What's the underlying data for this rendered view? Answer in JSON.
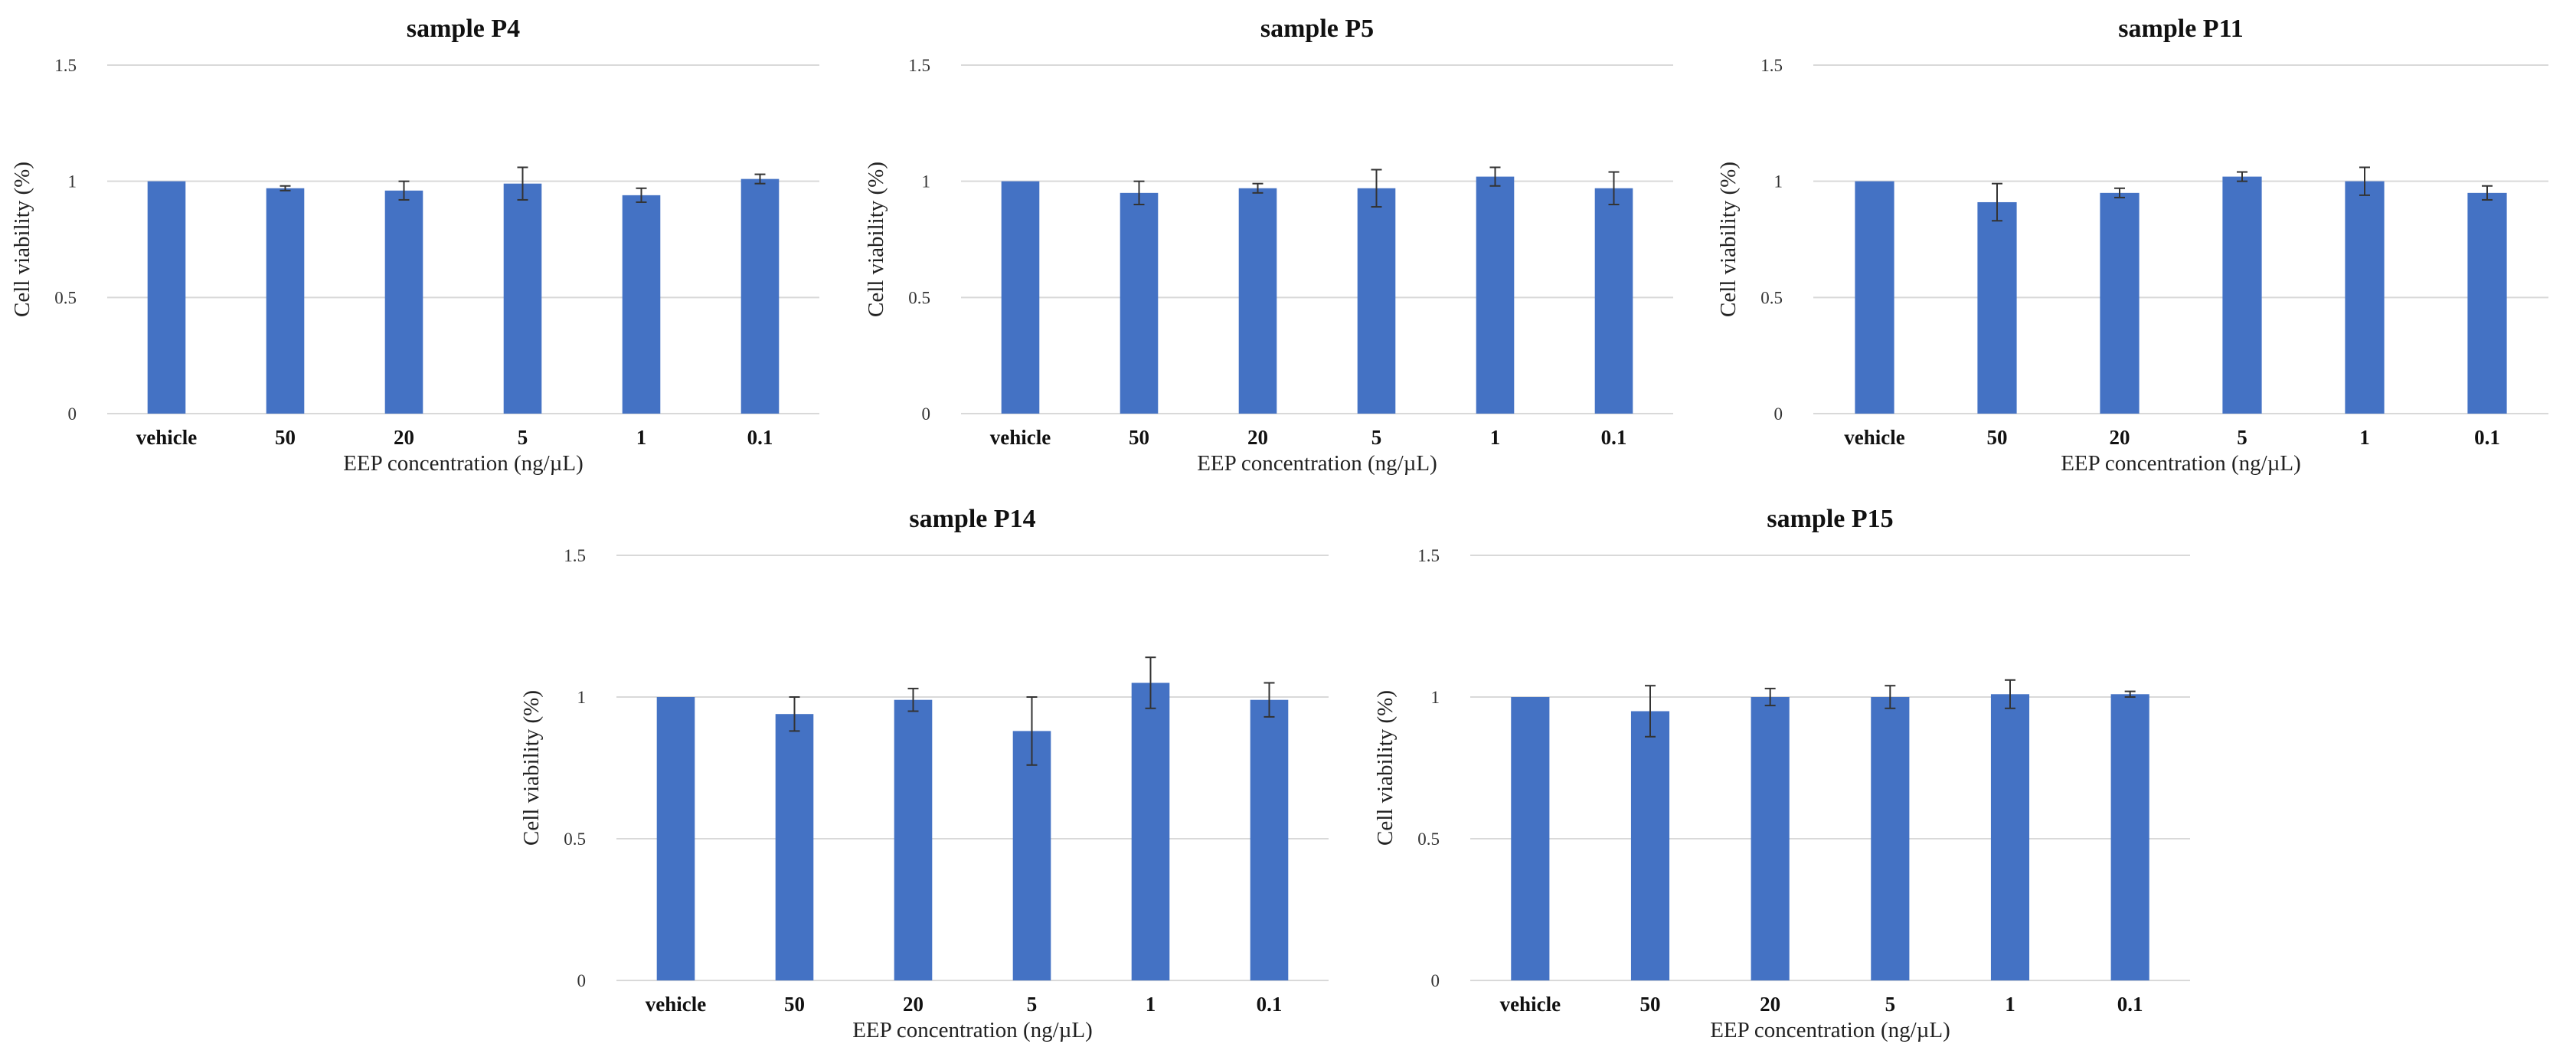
{
  "chart_data": [
    {
      "type": "bar",
      "title": "sample P4",
      "xlabel": "EEP concentration (ng/µL)",
      "ylabel": "Cell viability (%)",
      "ylim": [
        0,
        1.5
      ],
      "yticks": [
        "0",
        "0.5",
        "1",
        "1.5"
      ],
      "categories": [
        "vehicle",
        "50",
        "20",
        "5",
        "1",
        "0.1"
      ],
      "values": [
        1.0,
        0.97,
        0.96,
        0.99,
        0.94,
        1.01
      ],
      "errors": [
        0.0,
        0.01,
        0.04,
        0.07,
        0.03,
        0.02
      ],
      "grid": true
    },
    {
      "type": "bar",
      "title": "sample P5",
      "xlabel": "EEP concentration (ng/µL)",
      "ylabel": "Cell viability (%)",
      "ylim": [
        0,
        1.5
      ],
      "yticks": [
        "0",
        "0.5",
        "1",
        "1.5"
      ],
      "categories": [
        "vehicle",
        "50",
        "20",
        "5",
        "1",
        "0.1"
      ],
      "values": [
        1.0,
        0.95,
        0.97,
        0.97,
        1.02,
        0.97
      ],
      "errors": [
        0.0,
        0.05,
        0.02,
        0.08,
        0.04,
        0.07
      ],
      "grid": true
    },
    {
      "type": "bar",
      "title": "sample P11",
      "xlabel": "EEP concentration (ng/µL)",
      "ylabel": "Cell viability (%)",
      "ylim": [
        0,
        1.5
      ],
      "yticks": [
        "0",
        "0.5",
        "1",
        "1.5"
      ],
      "categories": [
        "vehicle",
        "50",
        "20",
        "5",
        "1",
        "0.1"
      ],
      "values": [
        1.0,
        0.91,
        0.95,
        1.02,
        1.0,
        0.95
      ],
      "errors": [
        0.0,
        0.08,
        0.02,
        0.02,
        0.06,
        0.03
      ],
      "grid": true
    },
    {
      "type": "bar",
      "title": "sample P14",
      "xlabel": "EEP concentration (ng/µL)",
      "ylabel": "Cell viability (%)",
      "ylim": [
        0,
        1.5
      ],
      "yticks": [
        "0",
        "0.5",
        "1",
        "1.5"
      ],
      "categories": [
        "vehicle",
        "50",
        "20",
        "5",
        "1",
        "0.1"
      ],
      "values": [
        1.0,
        0.94,
        0.99,
        0.88,
        1.05,
        0.99
      ],
      "errors": [
        0.0,
        0.06,
        0.04,
        0.12,
        0.09,
        0.06
      ],
      "grid": true
    },
    {
      "type": "bar",
      "title": "sample P15",
      "xlabel": "EEP concentration (ng/µL)",
      "ylabel": "Cell viability (%)",
      "ylim": [
        0,
        1.5
      ],
      "yticks": [
        "0",
        "0.5",
        "1",
        "1.5"
      ],
      "categories": [
        "vehicle",
        "50",
        "20",
        "5",
        "1",
        "0.1"
      ],
      "values": [
        1.0,
        0.95,
        1.0,
        1.0,
        1.01,
        1.01
      ],
      "errors": [
        0.0,
        0.09,
        0.03,
        0.04,
        0.05,
        0.01
      ],
      "grid": true
    }
  ]
}
